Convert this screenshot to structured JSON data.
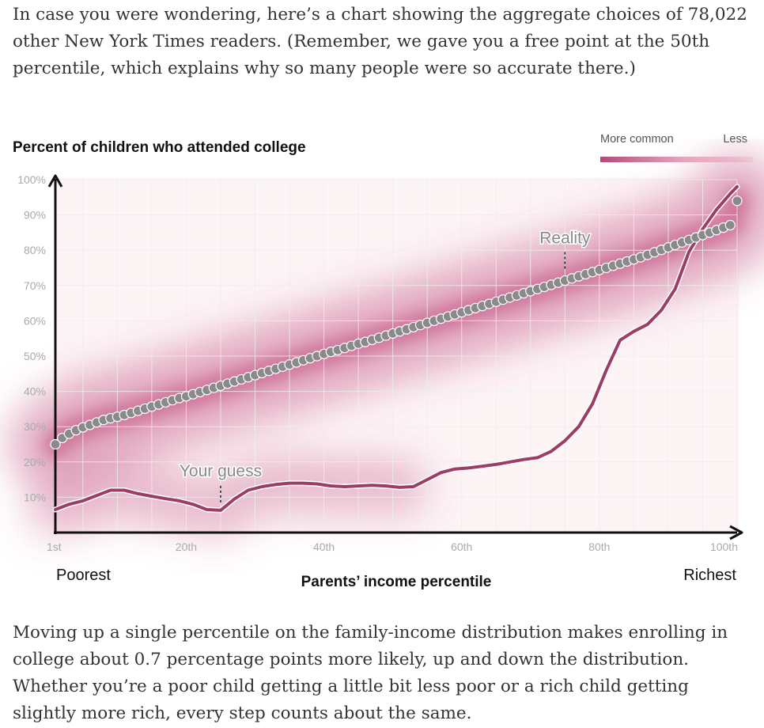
{
  "intro_text": "In case you were wondering, here’s a chart showing the aggregate choices of 78,022 other New York Times readers. (Remember, we gave you a free point at the 50th percentile, which explains why so many people were so accurate there.)",
  "outro_text": "Moving up a single percentile on the family-income distribution makes enrolling in college about 0.7 percentage points more likely, up and down the distribution. Whether you’re a poor child getting a little bit less poor or a rich child getting slightly more rich, every step counts about the same.",
  "colors": {
    "reality_dots": "#8a8a8a",
    "guess_line": "#9b3d66",
    "density": "#c2507f",
    "grid": "#eeeeee",
    "axis": "#111111"
  },
  "chart_data": {
    "type": "line",
    "title": "Percent of children who attended college",
    "xlabel": "Parents’ income percentile",
    "x_left_label": "Poorest",
    "x_right_label": "Richest",
    "legend": {
      "left_label": "More common",
      "right_label": "Less",
      "placement": "top-right"
    },
    "xlim": [
      1,
      100
    ],
    "ylim": [
      0,
      100
    ],
    "x_ticks": [
      {
        "value": 1,
        "label": "1st"
      },
      {
        "value": 20,
        "label": "20th"
      },
      {
        "value": 40,
        "label": "40th"
      },
      {
        "value": 60,
        "label": "60th"
      },
      {
        "value": 80,
        "label": "80th"
      },
      {
        "value": 100,
        "label": "100th"
      }
    ],
    "y_ticks": [
      {
        "value": 10,
        "label": "10%"
      },
      {
        "value": 20,
        "label": "20%"
      },
      {
        "value": 30,
        "label": "30%"
      },
      {
        "value": 40,
        "label": "40%"
      },
      {
        "value": 50,
        "label": "50%"
      },
      {
        "value": 60,
        "label": "60%"
      },
      {
        "value": 70,
        "label": "70%"
      },
      {
        "value": 80,
        "label": "80%"
      },
      {
        "value": 90,
        "label": "90%"
      },
      {
        "value": 100,
        "label": "100%"
      }
    ],
    "grid": true,
    "annotations": [
      {
        "text": "Reality",
        "series": "reality",
        "x": 75
      },
      {
        "text": "Your guess",
        "series": "guess",
        "x": 25
      }
    ],
    "reality": {
      "x": [
        1,
        2,
        3,
        4,
        5,
        6,
        7,
        8,
        9,
        10,
        11,
        12,
        13,
        14,
        15,
        16,
        17,
        18,
        19,
        20,
        21,
        22,
        23,
        24,
        25,
        26,
        27,
        28,
        29,
        30,
        31,
        32,
        33,
        34,
        35,
        36,
        37,
        38,
        39,
        40,
        41,
        42,
        43,
        44,
        45,
        46,
        47,
        48,
        49,
        50,
        51,
        52,
        53,
        54,
        55,
        56,
        57,
        58,
        59,
        60,
        61,
        62,
        63,
        64,
        65,
        66,
        67,
        68,
        69,
        70,
        71,
        72,
        73,
        74,
        75,
        76,
        77,
        78,
        79,
        80,
        81,
        82,
        83,
        84,
        85,
        86,
        87,
        88,
        89,
        90,
        91,
        92,
        93,
        94,
        95,
        96,
        97,
        98,
        99,
        100
      ],
      "y": [
        25,
        26.8,
        28,
        29,
        29.8,
        30.5,
        31.2,
        31.9,
        32.4,
        32.8,
        33.3,
        33.9,
        34.5,
        35.1,
        35.7,
        36.3,
        36.9,
        37.5,
        38.1,
        38.6,
        39.2,
        39.8,
        40.4,
        41,
        41.6,
        42.2,
        42.8,
        43.4,
        44,
        44.6,
        45.2,
        45.8,
        46.4,
        47,
        47.6,
        48.2,
        48.8,
        49.4,
        50,
        50.6,
        51.2,
        51.7,
        52.3,
        52.9,
        53.5,
        54,
        54.6,
        55.2,
        55.8,
        56.4,
        57,
        57.6,
        58.2,
        58.8,
        59.4,
        60,
        60.6,
        61.2,
        61.8,
        62.4,
        63,
        63.6,
        64.2,
        64.8,
        65.4,
        66,
        66.6,
        67.2,
        67.8,
        68.4,
        69,
        69.6,
        70.2,
        70.8,
        71.4,
        72,
        72.6,
        73.2,
        73.8,
        74.4,
        75,
        75.6,
        76.2,
        76.8,
        77.4,
        78,
        78.7,
        79.4,
        80.1,
        80.8,
        81.5,
        82.2,
        82.9,
        83.6,
        84.3,
        85,
        85.7,
        86.4,
        87.1,
        94
      ]
    },
    "guess": {
      "x": [
        1,
        3,
        5,
        7,
        9,
        11,
        13,
        15,
        17,
        19,
        21,
        23,
        25,
        27,
        29,
        31,
        33,
        35,
        37,
        39,
        41,
        43,
        45,
        47,
        49,
        51,
        53,
        55,
        57,
        59,
        61,
        63,
        65,
        67,
        69,
        71,
        73,
        75,
        77,
        79,
        81,
        83,
        85,
        87,
        89,
        91,
        93,
        95,
        97,
        99,
        100
      ],
      "y": [
        6.5,
        8,
        9,
        10.5,
        12,
        12,
        11,
        10.3,
        9.6,
        9,
        8,
        6.5,
        6.3,
        9.5,
        12,
        13,
        13.6,
        14,
        14,
        13.8,
        13.2,
        13,
        13.2,
        13.4,
        13.2,
        12.8,
        13,
        15,
        17,
        18,
        18.3,
        18.8,
        19.3,
        20,
        20.7,
        21.2,
        23,
        26,
        30,
        36.5,
        46,
        54.5,
        57,
        59,
        63,
        69,
        79.5,
        86,
        91.5,
        96,
        98
      ]
    }
  }
}
